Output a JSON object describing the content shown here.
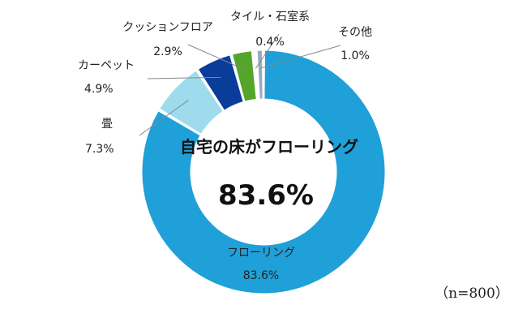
{
  "chart_data": {
    "type": "pie",
    "donut": true,
    "center_title": "自宅の床がフローリング",
    "center_value": "83.6%",
    "note": "（n=800）",
    "slices": [
      {
        "name": "フローリング",
        "value": 83.6,
        "label": "83.6%",
        "color": "#1fa0d8"
      },
      {
        "name": "畳",
        "value": 7.3,
        "label": "7.3%",
        "color": "#9ddbed"
      },
      {
        "name": "カーペット",
        "value": 4.9,
        "label": "4.9%",
        "color": "#0a3c9a"
      },
      {
        "name": "クッションフロア",
        "value": 2.9,
        "label": "2.9%",
        "color": "#54a62a"
      },
      {
        "name": "タイル・石室系",
        "value": 0.4,
        "label": "0.4%",
        "color": "#5b5b5b"
      },
      {
        "name": "その他",
        "value": 1.0,
        "label": "1.0%",
        "color": "#9aaabd"
      }
    ]
  }
}
